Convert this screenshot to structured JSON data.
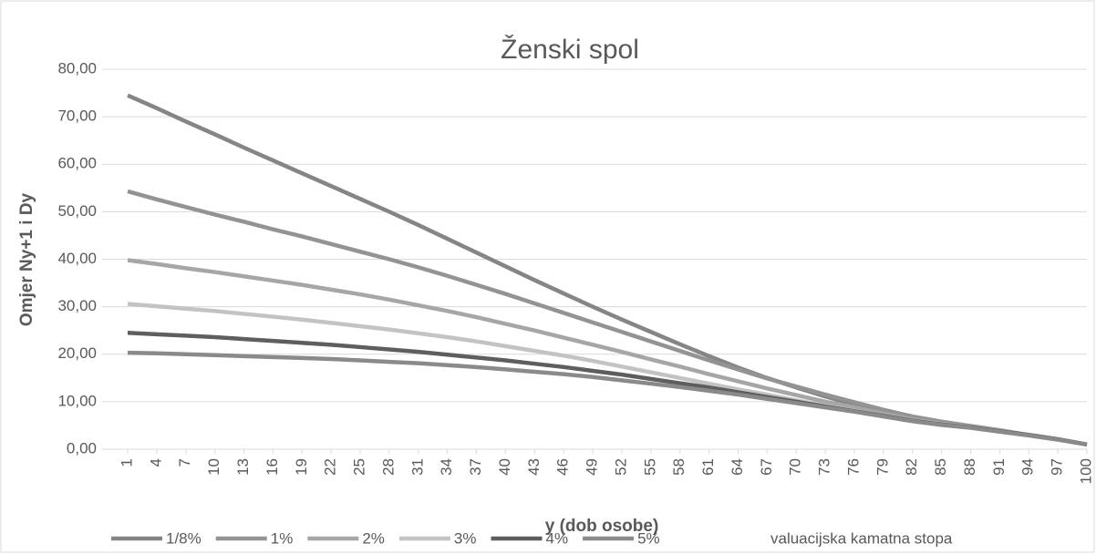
{
  "chart_data": {
    "type": "line",
    "title": "Ženski spol",
    "x_label": "y (dob osobe)",
    "y_label": "Omjer Ny+1 i Dy",
    "legend_title": "valuacijska kamatna stopa",
    "legend": "bottom",
    "grid": true,
    "x": [
      1,
      4,
      7,
      10,
      13,
      16,
      19,
      22,
      25,
      28,
      31,
      34,
      37,
      40,
      43,
      46,
      49,
      52,
      55,
      58,
      61,
      64,
      67,
      70,
      73,
      76,
      79,
      82,
      85,
      88,
      91,
      94,
      97,
      100
    ],
    "xlim": [
      1,
      100
    ],
    "xticks": [
      1,
      4,
      7,
      10,
      13,
      16,
      19,
      22,
      25,
      28,
      31,
      34,
      37,
      40,
      43,
      46,
      49,
      52,
      55,
      58,
      61,
      64,
      67,
      70,
      73,
      76,
      79,
      82,
      85,
      88,
      91,
      94,
      97,
      100
    ],
    "ylim": [
      0,
      80
    ],
    "yticks": [
      {
        "value": 0,
        "label": "0,00"
      },
      {
        "value": 10,
        "label": "10,00"
      },
      {
        "value": 20,
        "label": "20,00"
      },
      {
        "value": 30,
        "label": "30,00"
      },
      {
        "value": 40,
        "label": "40,00"
      },
      {
        "value": 50,
        "label": "50,00"
      },
      {
        "value": 60,
        "label": "60,00"
      },
      {
        "value": 70,
        "label": "70,00"
      },
      {
        "value": 80,
        "label": "80,00"
      }
    ],
    "series": [
      {
        "name": "1/8%",
        "color": "#858585",
        "values": [
          74.5,
          71.8,
          69.0,
          66.3,
          63.5,
          60.8,
          58.1,
          55.4,
          52.7,
          50.0,
          47.2,
          44.3,
          41.4,
          38.5,
          35.6,
          32.8,
          30.0,
          27.3,
          24.7,
          22.1,
          19.6,
          17.2,
          15.0,
          13.0,
          11.1,
          9.4,
          7.9,
          6.6,
          5.6,
          4.8,
          3.9,
          3.0,
          2.1,
          1.0
        ]
      },
      {
        "name": "1%",
        "color": "#939393",
        "values": [
          54.3,
          52.6,
          51.0,
          49.4,
          47.9,
          46.3,
          44.8,
          43.2,
          41.6,
          40.0,
          38.3,
          36.5,
          34.6,
          32.7,
          30.7,
          28.7,
          26.7,
          24.7,
          22.7,
          20.7,
          18.7,
          16.8,
          14.9,
          13.2,
          11.5,
          9.9,
          8.3,
          6.9,
          5.8,
          4.9,
          4.0,
          3.0,
          2.1,
          1.0
        ]
      },
      {
        "name": "2%",
        "color": "#a6a6a6",
        "values": [
          39.8,
          39.0,
          38.1,
          37.3,
          36.4,
          35.5,
          34.6,
          33.6,
          32.6,
          31.5,
          30.3,
          29.1,
          27.8,
          26.4,
          25.0,
          23.5,
          22.0,
          20.5,
          18.9,
          17.4,
          15.8,
          14.3,
          12.8,
          11.4,
          10.0,
          8.8,
          7.5,
          6.3,
          5.4,
          4.7,
          3.9,
          3.0,
          2.1,
          1.0
        ]
      },
      {
        "name": "3%",
        "color": "#c3c3c3",
        "values": [
          30.6,
          30.1,
          29.6,
          29.1,
          28.5,
          27.9,
          27.3,
          26.6,
          25.9,
          25.2,
          24.4,
          23.6,
          22.7,
          21.7,
          20.7,
          19.7,
          18.6,
          17.4,
          16.2,
          15.0,
          13.8,
          12.6,
          11.5,
          10.3,
          9.2,
          8.1,
          7.0,
          6.0,
          5.2,
          4.6,
          3.8,
          3.0,
          2.1,
          1.0
        ]
      },
      {
        "name": "4%",
        "color": "#5e5e5e",
        "values": [
          24.5,
          24.2,
          23.9,
          23.6,
          23.2,
          22.8,
          22.4,
          22.0,
          21.5,
          21.0,
          20.5,
          19.9,
          19.3,
          18.7,
          18.0,
          17.3,
          16.5,
          15.7,
          14.8,
          13.9,
          13.0,
          12.0,
          11.0,
          10.0,
          9.0,
          8.0,
          7.0,
          6.0,
          5.2,
          4.6,
          3.8,
          3.0,
          2.1,
          1.0
        ]
      },
      {
        "name": "5%",
        "color": "#8a8a8a",
        "values": [
          20.3,
          20.2,
          20.0,
          19.8,
          19.6,
          19.4,
          19.2,
          19.0,
          18.7,
          18.4,
          18.1,
          17.7,
          17.3,
          16.8,
          16.3,
          15.8,
          15.2,
          14.5,
          13.8,
          13.1,
          12.3,
          11.5,
          10.6,
          9.7,
          8.8,
          7.9,
          6.9,
          5.9,
          5.1,
          4.5,
          3.7,
          2.9,
          2.0,
          1.0
        ]
      }
    ]
  }
}
